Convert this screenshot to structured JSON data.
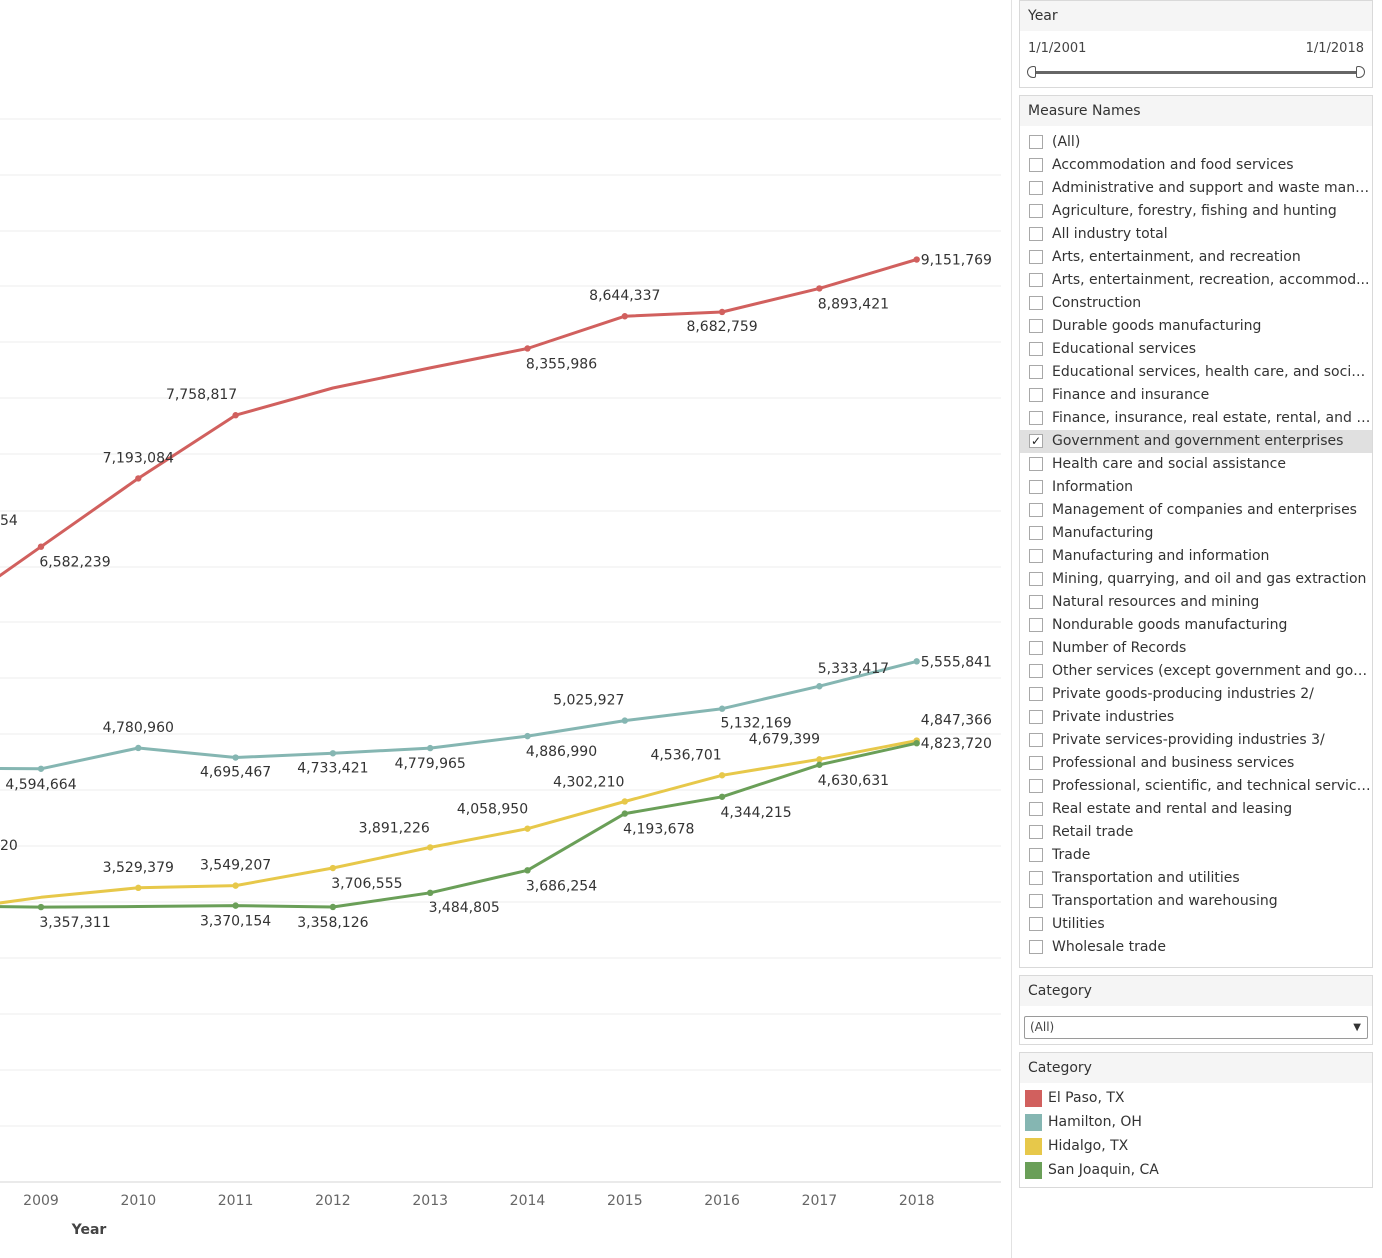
{
  "filters": {
    "year": {
      "title": "Year",
      "start": "1/1/2001",
      "end": "1/1/2018"
    },
    "measure_names": {
      "title": "Measure Names",
      "items": [
        {
          "label": "(All)",
          "checked": false
        },
        {
          "label": "Accommodation and food services",
          "checked": false
        },
        {
          "label": "Administrative and support and waste mana...",
          "checked": false
        },
        {
          "label": "Agriculture, forestry, fishing and hunting",
          "checked": false
        },
        {
          "label": "All industry total",
          "checked": false
        },
        {
          "label": "Arts, entertainment, and recreation",
          "checked": false
        },
        {
          "label": "Arts, entertainment, recreation, accommod...",
          "checked": false
        },
        {
          "label": "Construction",
          "checked": false
        },
        {
          "label": "Durable goods manufacturing",
          "checked": false
        },
        {
          "label": "Educational services",
          "checked": false
        },
        {
          "label": "Educational services, health care, and social ...",
          "checked": false
        },
        {
          "label": "Finance and insurance",
          "checked": false
        },
        {
          "label": "Finance, insurance, real estate, rental, and l...",
          "checked": false
        },
        {
          "label": "Government and government enterprises",
          "checked": true
        },
        {
          "label": "Health care and social assistance",
          "checked": false
        },
        {
          "label": "Information",
          "checked": false
        },
        {
          "label": "Management of companies and enterprises",
          "checked": false
        },
        {
          "label": "Manufacturing",
          "checked": false
        },
        {
          "label": "Manufacturing and information",
          "checked": false
        },
        {
          "label": "Mining, quarrying, and oil and gas extraction",
          "checked": false
        },
        {
          "label": "Natural resources and mining",
          "checked": false
        },
        {
          "label": "Nondurable goods manufacturing",
          "checked": false
        },
        {
          "label": "Number of Records",
          "checked": false
        },
        {
          "label": "Other services (except government and gov...",
          "checked": false
        },
        {
          "label": "Private goods-producing industries 2/",
          "checked": false
        },
        {
          "label": "Private industries",
          "checked": false
        },
        {
          "label": "Private services-providing industries 3/",
          "checked": false
        },
        {
          "label": "Professional and business services",
          "checked": false
        },
        {
          "label": "Professional, scientific, and technical services",
          "checked": false
        },
        {
          "label": "Real estate and rental and leasing",
          "checked": false
        },
        {
          "label": "Retail trade",
          "checked": false
        },
        {
          "label": "Trade",
          "checked": false
        },
        {
          "label": "Transportation and utilities",
          "checked": false
        },
        {
          "label": "Transportation and warehousing",
          "checked": false
        },
        {
          "label": "Utilities",
          "checked": false
        },
        {
          "label": "Wholesale trade",
          "checked": false
        }
      ]
    },
    "category": {
      "title": "Category",
      "selected": "(All)"
    }
  },
  "legend": {
    "title": "Category",
    "items": [
      {
        "label": "El Paso, TX",
        "color": "#d1605e"
      },
      {
        "label": "Hamilton, OH",
        "color": "#85b6b2"
      },
      {
        "label": "Hidalgo, TX",
        "color": "#e7c84a"
      },
      {
        "label": "San Joaquin, CA",
        "color": "#6a9f58"
      }
    ]
  },
  "chart_data": {
    "type": "line",
    "xlabel": "Year",
    "ylabel": "",
    "x": [
      2009,
      2010,
      2011,
      2012,
      2013,
      2014,
      2015,
      2016,
      2017,
      2018
    ],
    "grid": true,
    "series": [
      {
        "name": "El Paso, TX",
        "color": "#d1605e",
        "values": [
          6582239,
          7193084,
          7758817,
          null,
          null,
          8355986,
          8644337,
          8682759,
          8893421,
          9151769
        ],
        "line_values": [
          6582239,
          7193084,
          7758817,
          8002000,
          8182000,
          8355986,
          8644337,
          8682759,
          8893421,
          9151769
        ],
        "prev_value": 5947000,
        "labels": [
          "6,582,239",
          "7,193,084",
          "7,758,817",
          "",
          "",
          "8,355,986",
          "8,644,337",
          "8,682,759",
          "8,893,421",
          "9,151,769"
        ],
        "clipped_label": "54"
      },
      {
        "name": "Hamilton, OH",
        "color": "#85b6b2",
        "values": [
          4594664,
          4780960,
          4695467,
          4733421,
          4779965,
          4886990,
          5025927,
          5132169,
          5333417,
          5555841
        ],
        "prev_value": 4600000,
        "labels": [
          "4,594,664",
          "4,780,960",
          "4,695,467",
          "4,733,421",
          "4,779,965",
          "4,886,990",
          "5,025,927",
          "5,132,169",
          "5,333,417",
          "5,555,841"
        ]
      },
      {
        "name": "Hidalgo, TX",
        "color": "#e7c84a",
        "values": [
          null,
          3529379,
          3549207,
          3706555,
          3891226,
          4058950,
          4302210,
          4536701,
          4679399,
          4847366
        ],
        "line_values": [
          3445000,
          3529379,
          3549207,
          3706555,
          3891226,
          4058950,
          4302210,
          4536701,
          4679399,
          4847366
        ],
        "prev_value": 3320000,
        "labels": [
          "",
          "3,529,379",
          "3,549,207",
          "3,706,555",
          "3,891,226",
          "4,058,950",
          "4,302,210",
          "4,536,701",
          "4,679,399",
          "4,847,366"
        ],
        "clipped_label": "20"
      },
      {
        "name": "San Joaquin, CA",
        "color": "#6a9f58",
        "values": [
          3357311,
          null,
          3370154,
          3358126,
          3484805,
          3686254,
          4193678,
          4344215,
          4630631,
          4823720
        ],
        "line_values": [
          3357311,
          3362000,
          3370154,
          3358126,
          3484805,
          3686254,
          4193678,
          4344215,
          4630631,
          4823720
        ],
        "prev_value": 3368000,
        "labels": [
          "3,357,311",
          "",
          "3,370,154",
          "3,358,126",
          "3,484,805",
          "3,686,254",
          "4,193,678",
          "4,344,215",
          "4,630,631",
          "4,823,720"
        ]
      }
    ]
  }
}
